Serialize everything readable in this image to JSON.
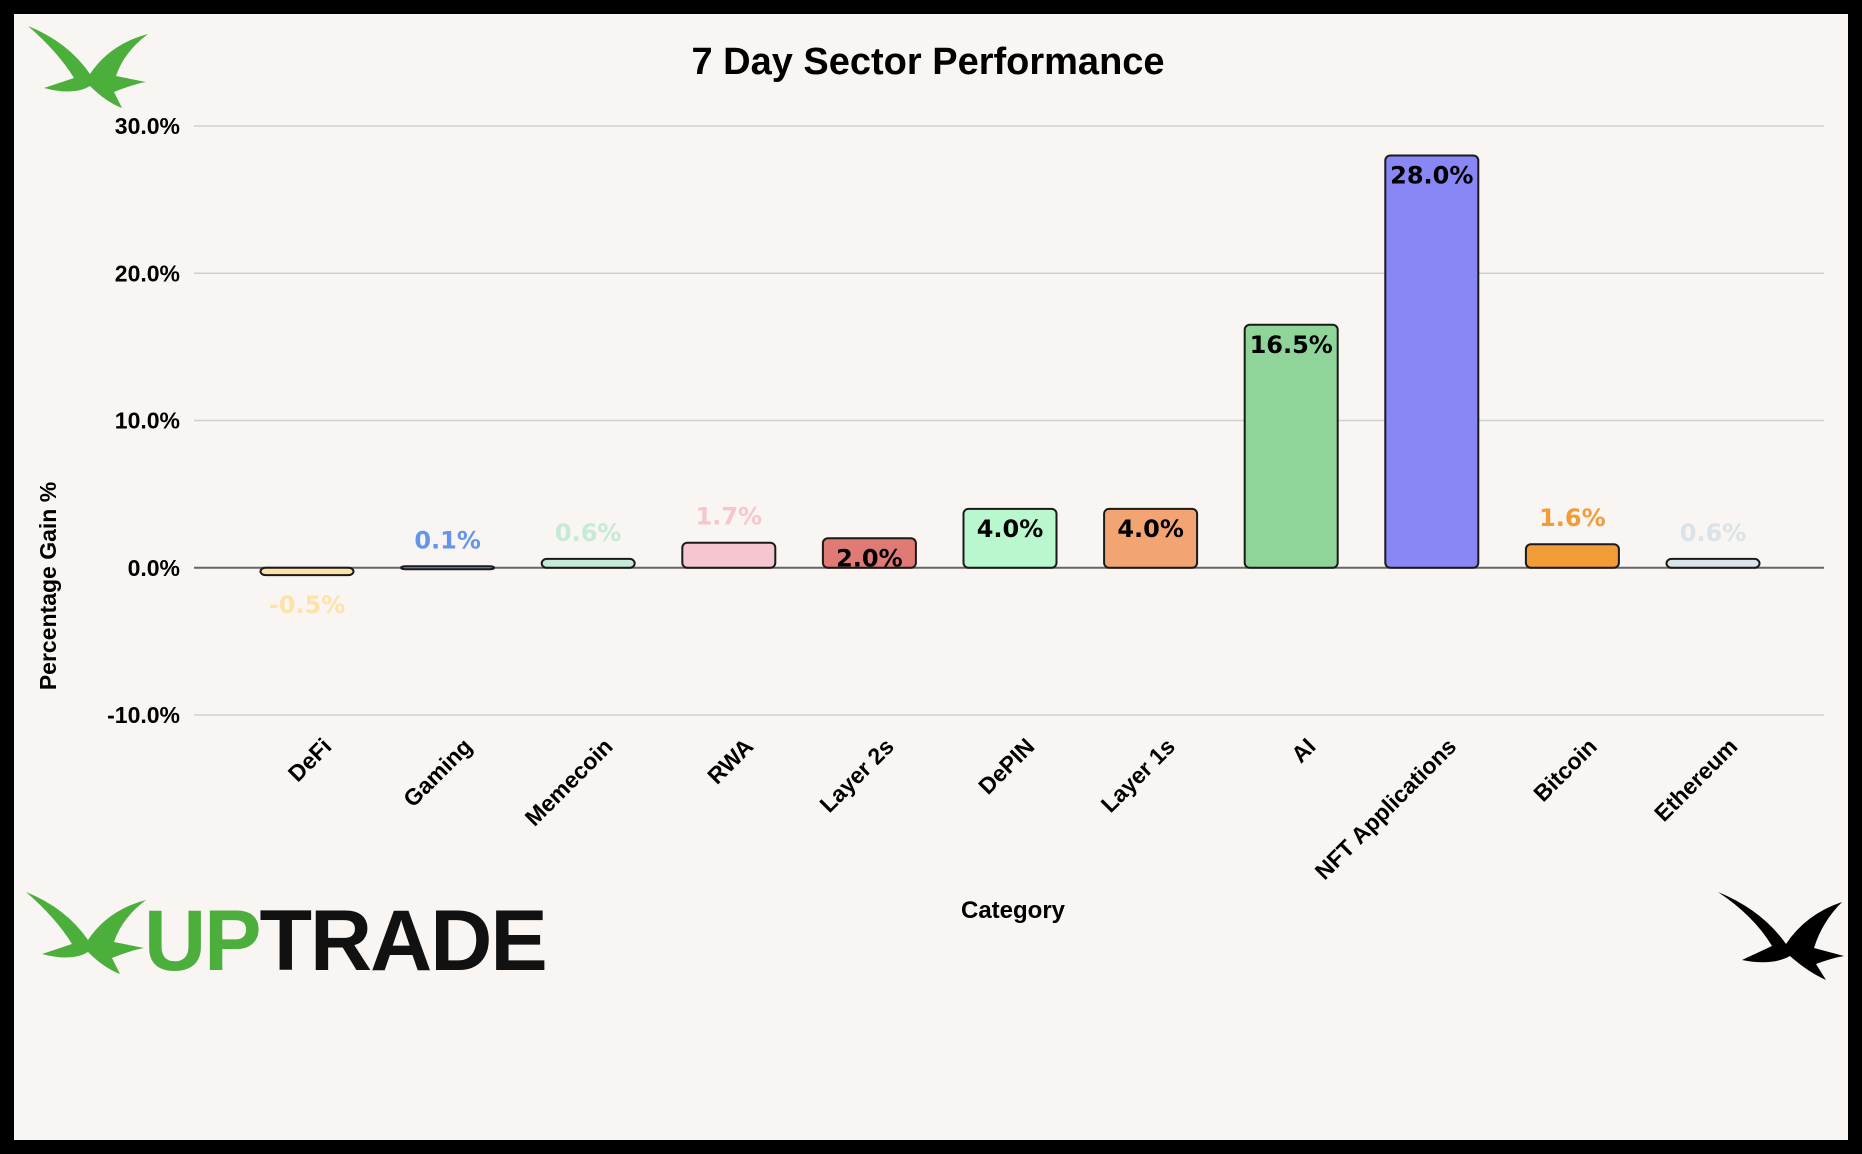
{
  "chart_data": {
    "type": "bar",
    "title": "7 Day Sector Performance",
    "xlabel": "Category",
    "ylabel": "Percentage Gain %",
    "ylim": [
      -10,
      30
    ],
    "yticks": [
      "30.0%",
      "20.0%",
      "10.0%",
      "0.0%",
      "-10.0%"
    ],
    "ytick_values": [
      30,
      20,
      10,
      0,
      -10
    ],
    "grid": true,
    "categories": [
      "DeFi",
      "Gaming",
      "Memecoin",
      "RWA",
      "Layer 2s",
      "DePIN",
      "Layer 1s",
      "AI",
      "NFT Applications",
      "Bitcoin",
      "Ethereum"
    ],
    "values": [
      -0.5,
      0.1,
      0.6,
      1.7,
      2.0,
      4.0,
      4.0,
      16.5,
      28.0,
      1.6,
      0.6
    ],
    "value_labels": [
      "-0.5%",
      "0.1%",
      "0.6%",
      "1.7%",
      "2.0%",
      "4.0%",
      "4.0%",
      "16.5%",
      "28.0%",
      "1.6%",
      "0.6%"
    ],
    "colors": [
      "#fde3a7",
      "#6495ed",
      "#c5ead8",
      "#f5c6d0",
      "#e07a74",
      "#b9f8cf",
      "#f2a573",
      "#8fd59a",
      "#8887f5",
      "#f29c38",
      "#d9e3e8"
    ]
  },
  "branding": {
    "wordmark_up": "UP",
    "wordmark_trade": "TRADE",
    "accent_color": "#4caf3c",
    "logo_icon": "bird-icon"
  }
}
